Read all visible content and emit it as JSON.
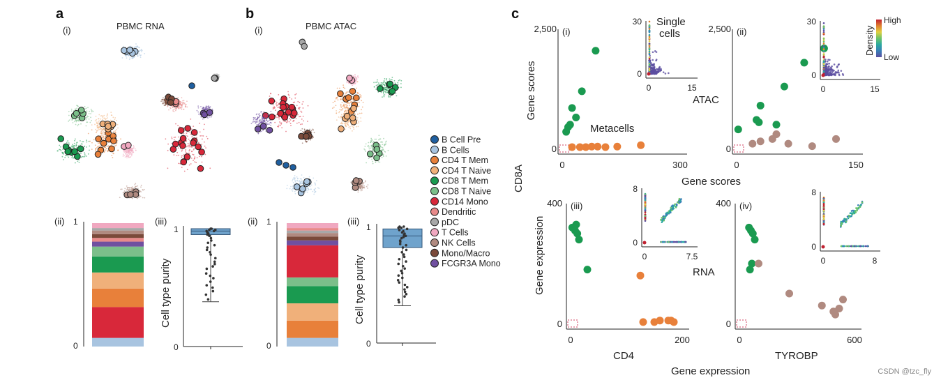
{
  "panels": {
    "a": {
      "letter": "a",
      "title": "PBMC RNA",
      "sub_i": "(i)",
      "sub_ii": "(ii)",
      "sub_iii": "(iii)"
    },
    "b": {
      "letter": "b",
      "title": "PBMC ATAC",
      "sub_i": "(i)",
      "sub_ii": "(ii)",
      "sub_iii": "(iii)"
    },
    "c": {
      "letter": "c"
    }
  },
  "legend": [
    {
      "label": "B Cell Pre",
      "color": "#1f5fa0"
    },
    {
      "label": "B Cells",
      "color": "#a8c4e0"
    },
    {
      "label": "CD4 T Mem",
      "color": "#e8803a"
    },
    {
      "label": "CD4 T Naive",
      "color": "#f0b07a"
    },
    {
      "label": "CD8 T Mem",
      "color": "#1a9a50"
    },
    {
      "label": "CD8 T Naive",
      "color": "#7bbf8a"
    },
    {
      "label": "CD14 Mono",
      "color": "#d8283a"
    },
    {
      "label": "Dendritic",
      "color": "#e88a8a"
    },
    {
      "label": "pDC",
      "color": "#a8a8a8"
    },
    {
      "label": "T Cells",
      "color": "#f0a8c0"
    },
    {
      "label": "NK Cells",
      "color": "#b08a80"
    },
    {
      "label": "Mono/Macro",
      "color": "#7a4a3a"
    },
    {
      "label": "FCGR3A Mono",
      "color": "#7050a0"
    }
  ],
  "composition_a": {
    "ticks": [
      "0",
      "1"
    ],
    "segments": [
      {
        "label": "B Cells",
        "frac": 0.07
      },
      {
        "label": "CD14 Mono",
        "frac": 0.25
      },
      {
        "label": "CD4 T Mem",
        "frac": 0.15
      },
      {
        "label": "CD4 T Naive",
        "frac": 0.13
      },
      {
        "label": "CD8 T Mem",
        "frac": 0.13
      },
      {
        "label": "CD8 T Naive",
        "frac": 0.08
      },
      {
        "label": "FCGR3A Mono",
        "frac": 0.04
      },
      {
        "label": "Dendritic",
        "frac": 0.03
      },
      {
        "label": "Mono/Macro",
        "frac": 0.03
      },
      {
        "label": "NK Cells",
        "frac": 0.03
      },
      {
        "label": "pDC",
        "frac": 0.02
      },
      {
        "label": "T Cells",
        "frac": 0.04
      }
    ]
  },
  "composition_b": {
    "ticks": [
      "0",
      "1"
    ],
    "segments": [
      {
        "label": "B Cells",
        "frac": 0.07
      },
      {
        "label": "CD4 T Mem",
        "frac": 0.14
      },
      {
        "label": "CD4 T Naive",
        "frac": 0.14
      },
      {
        "label": "CD8 T Mem",
        "frac": 0.14
      },
      {
        "label": "CD8 T Naive",
        "frac": 0.07
      },
      {
        "label": "CD14 Mono",
        "frac": 0.26
      },
      {
        "label": "FCGR3A Mono",
        "frac": 0.04
      },
      {
        "label": "Mono/Macro",
        "frac": 0.03
      },
      {
        "label": "NK Cells",
        "frac": 0.03
      },
      {
        "label": "pDC",
        "frac": 0.02
      },
      {
        "label": "Dendritic",
        "frac": 0.02
      },
      {
        "label": "T Cells",
        "frac": 0.04
      }
    ]
  },
  "purity_a": {
    "ylabel": "Cell type purity",
    "ticks": [
      "0",
      "1"
    ],
    "box": {
      "q1": 0.95,
      "median": 0.98,
      "q3": 1.0,
      "whisker_low": 0.38,
      "whisker_high": 1.0
    },
    "points": [
      1.0,
      1.0,
      0.99,
      0.99,
      0.98,
      0.98,
      0.97,
      0.96,
      0.95,
      0.94,
      0.92,
      0.9,
      0.88,
      0.86,
      0.84,
      0.82,
      0.8,
      0.78,
      0.75,
      0.72,
      0.7,
      0.68,
      0.66,
      0.62,
      0.6,
      0.58,
      0.55,
      0.52,
      0.5,
      0.47,
      0.44,
      0.4
    ]
  },
  "purity_b": {
    "ylabel": "Cell type purity",
    "ticks": [
      "0",
      "1"
    ],
    "box": {
      "q1": 0.82,
      "median": 0.92,
      "q3": 0.98,
      "whisker_low": 0.32,
      "whisker_high": 1.0
    },
    "points": [
      1.0,
      1.0,
      0.99,
      0.99,
      0.98,
      0.97,
      0.96,
      0.95,
      0.94,
      0.93,
      0.92,
      0.91,
      0.9,
      0.88,
      0.87,
      0.85,
      0.84,
      0.82,
      0.8,
      0.78,
      0.76,
      0.74,
      0.72,
      0.7,
      0.68,
      0.66,
      0.64,
      0.62,
      0.6,
      0.58,
      0.56,
      0.54,
      0.52,
      0.5,
      0.48,
      0.46,
      0.44,
      0.42,
      0.4,
      0.37,
      0.35
    ]
  },
  "chart_data": [
    {
      "type": "scatter",
      "panel": "c(i)",
      "xlabel": "",
      "ylabel": "Gene scores",
      "xlim": [
        0,
        300
      ],
      "ylim": [
        0,
        2500
      ],
      "xticks": [
        "0",
        "300"
      ],
      "yticks": [
        "0",
        "2,500"
      ],
      "annotation": "Metacells",
      "series": [
        {
          "color": "#1a9a50",
          "x": [
            10,
            15,
            20,
            25,
            35,
            50,
            85
          ],
          "y": [
            350,
            450,
            500,
            850,
            650,
            1200,
            2050
          ]
        },
        {
          "color": "#e8803a",
          "x": [
            25,
            45,
            60,
            75,
            90,
            110,
            140,
            200
          ],
          "y": [
            30,
            30,
            30,
            40,
            40,
            30,
            40,
            70
          ]
        }
      ]
    },
    {
      "type": "scatter",
      "panel": "c(i) inset",
      "title": "Single cells",
      "xlim": [
        0,
        15
      ],
      "ylim": [
        0,
        30
      ],
      "xticks": [
        "0",
        "15"
      ],
      "yticks": [
        "0",
        "30"
      ]
    },
    {
      "type": "scatter",
      "panel": "c(ii)",
      "xlabel": "ATAC",
      "ylabel": "",
      "xlim": [
        0,
        150
      ],
      "ylim": [
        0,
        2500
      ],
      "xticks": [
        "0",
        "150"
      ],
      "yticks": [
        "0",
        "2,500"
      ],
      "series": [
        {
          "color": "#1a9a50",
          "x": [
            2,
            25,
            28,
            30,
            50,
            60,
            85,
            110
          ],
          "y": [
            400,
            600,
            550,
            900,
            500,
            1300,
            1800,
            2100
          ]
        },
        {
          "color": "#b08a80",
          "x": [
            20,
            30,
            45,
            50,
            65,
            95,
            125
          ],
          "y": [
            100,
            150,
            200,
            300,
            100,
            50,
            200
          ]
        }
      ]
    },
    {
      "type": "scatter",
      "panel": "c(ii) inset",
      "legend_title": "Density",
      "legend_high": "High",
      "legend_low": "Low",
      "xlim": [
        0,
        15
      ],
      "ylim": [
        0,
        30
      ],
      "xticks": [
        "0",
        "15"
      ],
      "yticks": [
        "0",
        "30"
      ]
    },
    {
      "type": "scatter",
      "panel": "c(iii)",
      "xlabel": "CD4",
      "ylabel": "Gene expression",
      "xlim": [
        0,
        200
      ],
      "ylim": [
        0,
        400
      ],
      "xticks": [
        "0",
        "200"
      ],
      "yticks": [
        "0",
        "400"
      ],
      "series": [
        {
          "color": "#1a9a50",
          "x": [
            3,
            8,
            10,
            12,
            15,
            30
          ],
          "y": [
            320,
            310,
            330,
            300,
            280,
            180
          ]
        },
        {
          "color": "#e8803a",
          "x": [
            125,
            130,
            150,
            160,
            175,
            180,
            185
          ],
          "y": [
            160,
            5,
            5,
            10,
            10,
            10,
            5
          ]
        }
      ]
    },
    {
      "type": "scatter",
      "panel": "c(iii) inset",
      "xlabel": "RNA",
      "xlim": [
        0,
        7.5
      ],
      "ylim": [
        0,
        8
      ],
      "xticks": [
        "0",
        "7.5"
      ],
      "yticks": [
        "0",
        "8"
      ]
    },
    {
      "type": "scatter",
      "panel": "c(iv)",
      "xlabel": "TYROBP",
      "ylabel": "",
      "xlim": [
        0,
        600
      ],
      "ylim": [
        0,
        400
      ],
      "xticks": [
        "0",
        "600"
      ],
      "yticks": [
        "0",
        "400"
      ],
      "series": [
        {
          "color": "#1a9a50",
          "x": [
            50,
            60,
            70,
            80,
            65,
            55
          ],
          "y": [
            320,
            310,
            300,
            280,
            200,
            180
          ]
        },
        {
          "color": "#b08a80",
          "x": [
            100,
            260,
            430,
            490,
            520,
            500,
            540
          ],
          "y": [
            200,
            100,
            60,
            40,
            50,
            30,
            80
          ]
        }
      ]
    },
    {
      "type": "scatter",
      "panel": "c(iv) inset",
      "xlim": [
        0,
        8
      ],
      "ylim": [
        0,
        8
      ],
      "xticks": [
        "0",
        "8"
      ],
      "yticks": [
        "0",
        "8"
      ]
    }
  ],
  "shared_labels": {
    "c_left_ylabel": "CD8A",
    "c_top_xlabel": "Gene scores",
    "c_bottom_xlabel": "Gene expression"
  },
  "subpanel_labels": [
    "(i)",
    "(ii)",
    "(iii)",
    "(iv)"
  ],
  "watermark": "CSDN @tzc_fly"
}
